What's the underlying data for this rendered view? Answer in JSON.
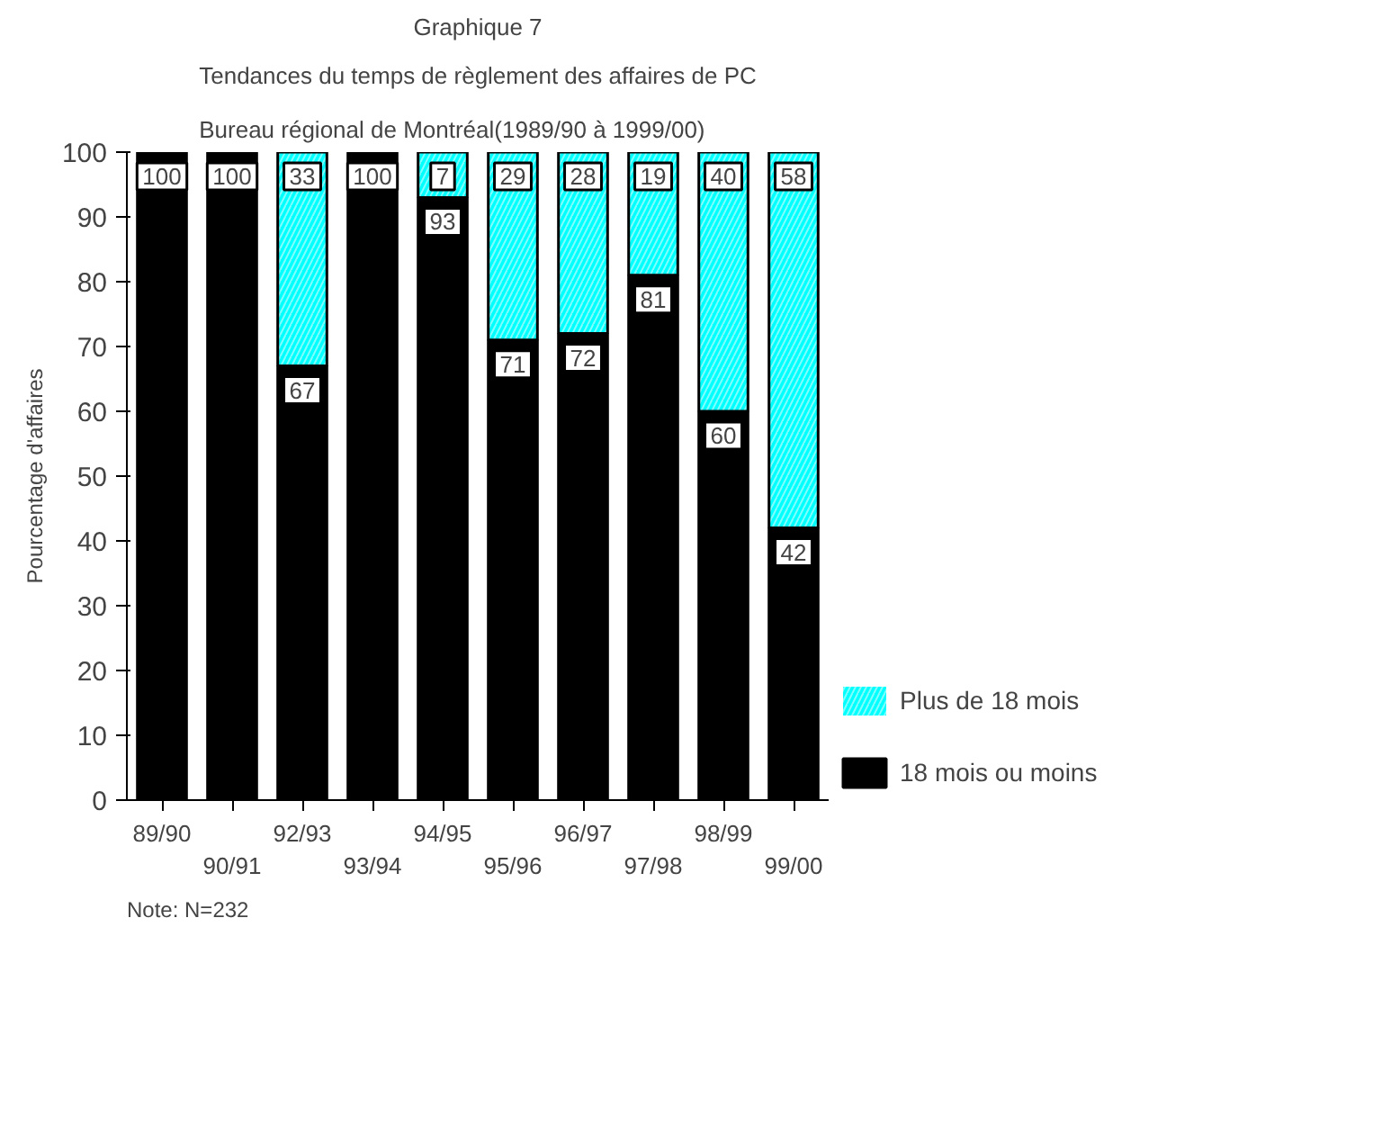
{
  "chart_data": {
    "type": "bar",
    "stacked": true,
    "title": "Graphique 7",
    "subtitle": "Tendances du temps de règlement des affaires de PC\nBureau régional de Montréal(1989/90 à 1999/00)",
    "ylabel": "Pourcentage d'affaires",
    "categories": [
      "89/90",
      "90/91",
      "92/93",
      "93/94",
      "94/95",
      "95/96",
      "96/97",
      "97/98",
      "98/99",
      "99/00"
    ],
    "series": [
      {
        "name": "18 mois ou moins",
        "color": "#000000",
        "values": [
          100,
          100,
          67,
          100,
          93,
          71,
          72,
          81,
          60,
          42
        ],
        "value_labels": [
          "100",
          "100",
          "67",
          "100",
          "93",
          "71",
          "72",
          "81",
          "60",
          "42"
        ]
      },
      {
        "name": "Plus de 18 mois",
        "color": "#00ffff",
        "values": [
          0,
          0,
          33,
          0,
          7,
          29,
          28,
          19,
          40,
          58
        ],
        "value_labels": [
          null,
          null,
          "33",
          null,
          "7",
          "29",
          "28",
          "19",
          "40",
          "58"
        ]
      }
    ],
    "ylim": [
      0,
      100
    ],
    "yticks": [
      0,
      10,
      20,
      30,
      40,
      50,
      60,
      70,
      80,
      90,
      100
    ],
    "grid": false,
    "legend": "right",
    "annotations": [
      "Note: N=232"
    ]
  }
}
